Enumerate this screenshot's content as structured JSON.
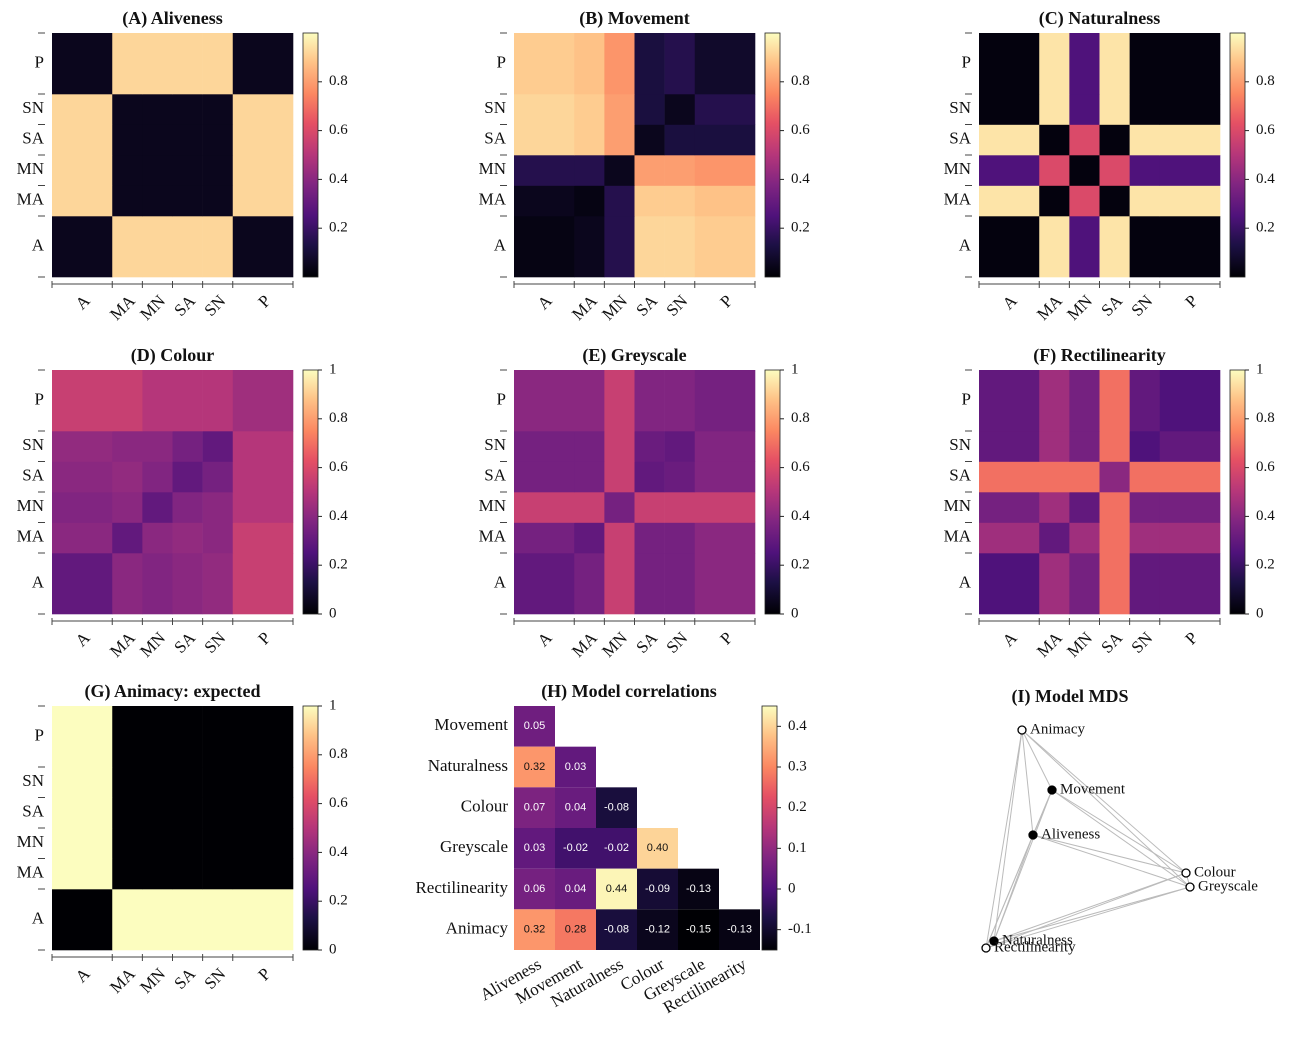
{
  "chart_data": [
    {
      "type": "heatmap",
      "title": "(A) Aliveness",
      "categories": [
        "A",
        "MA",
        "MN",
        "SA",
        "SN",
        "P"
      ],
      "xticks": [
        0,
        12,
        18,
        24,
        30,
        36,
        48
      ],
      "z": [
        [
          0.05,
          0.92,
          0.92,
          0.92,
          0.92,
          0.05
        ],
        [
          0.92,
          0.05,
          0.05,
          0.05,
          0.05,
          0.92
        ],
        [
          0.92,
          0.05,
          0.05,
          0.05,
          0.05,
          0.92
        ],
        [
          0.92,
          0.05,
          0.05,
          0.05,
          0.05,
          0.92
        ],
        [
          0.92,
          0.05,
          0.05,
          0.05,
          0.05,
          0.92
        ],
        [
          0.05,
          0.92,
          0.92,
          0.92,
          0.92,
          0.05
        ]
      ],
      "zlim": [
        0,
        1
      ],
      "zticks": [
        0.2,
        0.4,
        0.6,
        0.8
      ]
    },
    {
      "type": "heatmap",
      "title": "(B) Movement",
      "categories": [
        "A",
        "MA",
        "MN",
        "SA",
        "SN",
        "P"
      ],
      "xticks": [
        0,
        12,
        18,
        24,
        30,
        36,
        48
      ],
      "z": [
        [
          0.03,
          0.05,
          0.15,
          0.92,
          0.92,
          0.9
        ],
        [
          0.05,
          0.03,
          0.15,
          0.9,
          0.9,
          0.88
        ],
        [
          0.15,
          0.15,
          0.05,
          0.8,
          0.8,
          0.78
        ],
        [
          0.92,
          0.9,
          0.8,
          0.05,
          0.12,
          0.12
        ],
        [
          0.92,
          0.9,
          0.8,
          0.12,
          0.05,
          0.15
        ],
        [
          0.9,
          0.88,
          0.78,
          0.12,
          0.15,
          0.08
        ]
      ],
      "zlim": [
        0,
        1
      ],
      "zticks": [
        0.2,
        0.4,
        0.6,
        0.8
      ]
    },
    {
      "type": "heatmap",
      "title": "(C) Naturalness",
      "categories": [
        "A",
        "MA",
        "MN",
        "SA",
        "SN",
        "P"
      ],
      "xticks": [
        0,
        12,
        18,
        24,
        30,
        36,
        48
      ],
      "z": [
        [
          0.02,
          0.95,
          0.25,
          0.95,
          0.02,
          0.02
        ],
        [
          0.95,
          0.02,
          0.6,
          0.02,
          0.95,
          0.95
        ],
        [
          0.25,
          0.6,
          0.02,
          0.6,
          0.25,
          0.25
        ],
        [
          0.95,
          0.02,
          0.6,
          0.02,
          0.95,
          0.95
        ],
        [
          0.02,
          0.95,
          0.25,
          0.95,
          0.02,
          0.02
        ],
        [
          0.02,
          0.95,
          0.25,
          0.95,
          0.02,
          0.02
        ]
      ],
      "zlim": [
        0,
        1
      ],
      "zticks": [
        0.2,
        0.4,
        0.6,
        0.8
      ]
    },
    {
      "type": "heatmap",
      "title": "(D) Colour",
      "categories": [
        "A",
        "MA",
        "MN",
        "SA",
        "SN",
        "P"
      ],
      "xticks": [
        0,
        12,
        18,
        24,
        30,
        36,
        48
      ],
      "z": [
        [
          0.3,
          0.4,
          0.38,
          0.4,
          0.42,
          0.55
        ],
        [
          0.4,
          0.3,
          0.4,
          0.42,
          0.4,
          0.55
        ],
        [
          0.38,
          0.4,
          0.3,
          0.38,
          0.4,
          0.5
        ],
        [
          0.4,
          0.42,
          0.38,
          0.3,
          0.35,
          0.5
        ],
        [
          0.42,
          0.4,
          0.4,
          0.35,
          0.3,
          0.5
        ],
        [
          0.55,
          0.55,
          0.5,
          0.5,
          0.5,
          0.45
        ]
      ],
      "zlim": [
        0,
        1
      ],
      "zticks": [
        0,
        0.2,
        0.4,
        0.6,
        0.8,
        1
      ]
    },
    {
      "type": "heatmap",
      "title": "(E) Greyscale",
      "categories": [
        "A",
        "MA",
        "MN",
        "SA",
        "SN",
        "P"
      ],
      "xticks": [
        0,
        12,
        18,
        24,
        30,
        36,
        48
      ],
      "z": [
        [
          0.3,
          0.35,
          0.55,
          0.35,
          0.35,
          0.4
        ],
        [
          0.35,
          0.3,
          0.55,
          0.35,
          0.35,
          0.4
        ],
        [
          0.55,
          0.55,
          0.35,
          0.55,
          0.55,
          0.55
        ],
        [
          0.35,
          0.35,
          0.55,
          0.3,
          0.32,
          0.38
        ],
        [
          0.35,
          0.35,
          0.55,
          0.32,
          0.3,
          0.38
        ],
        [
          0.4,
          0.4,
          0.55,
          0.38,
          0.38,
          0.35
        ]
      ],
      "zlim": [
        0,
        1
      ],
      "zticks": [
        0,
        0.2,
        0.4,
        0.6,
        0.8,
        1
      ]
    },
    {
      "type": "heatmap",
      "title": "(F) Rectilinearity",
      "categories": [
        "A",
        "MA",
        "MN",
        "SA",
        "SN",
        "P"
      ],
      "xticks": [
        0,
        12,
        18,
        24,
        30,
        36,
        48
      ],
      "z": [
        [
          0.25,
          0.45,
          0.35,
          0.7,
          0.3,
          0.3
        ],
        [
          0.45,
          0.3,
          0.45,
          0.7,
          0.45,
          0.45
        ],
        [
          0.35,
          0.45,
          0.3,
          0.7,
          0.35,
          0.35
        ],
        [
          0.7,
          0.7,
          0.7,
          0.4,
          0.7,
          0.7
        ],
        [
          0.3,
          0.45,
          0.35,
          0.7,
          0.25,
          0.3
        ],
        [
          0.3,
          0.45,
          0.35,
          0.7,
          0.3,
          0.25
        ]
      ],
      "zlim": [
        0,
        1
      ],
      "zticks": [
        0,
        0.2,
        0.4,
        0.6,
        0.8,
        1
      ]
    },
    {
      "type": "heatmap",
      "title": "(G) Animacy: expected",
      "categories": [
        "A",
        "MA",
        "MN",
        "SA",
        "SN",
        "P"
      ],
      "xticks": [
        0,
        12,
        18,
        24,
        30,
        36,
        48
      ],
      "z": [
        [
          0,
          1,
          1,
          1,
          1,
          1
        ],
        [
          1,
          0,
          0,
          0,
          0,
          0
        ],
        [
          1,
          0,
          0,
          0,
          0,
          0
        ],
        [
          1,
          0,
          0,
          0,
          0,
          0
        ],
        [
          1,
          0,
          0,
          0,
          0,
          0
        ],
        [
          1,
          0,
          0,
          0,
          0,
          0
        ]
      ],
      "zlim": [
        0,
        1
      ],
      "zticks": [
        0,
        0.2,
        0.4,
        0.6,
        0.8,
        1
      ]
    },
    {
      "type": "correlation",
      "title": "(H) Model correlations",
      "rows": [
        "Movement",
        "Naturalness",
        "Colour",
        "Greyscale",
        "Rectilinearity",
        "Animacy"
      ],
      "columns": [
        "Aliveness",
        "Movement",
        "Naturalness",
        "Colour",
        "Greyscale",
        "Rectilinearity"
      ],
      "values": [
        [
          0.05,
          null,
          null,
          null,
          null,
          null
        ],
        [
          0.32,
          0.03,
          null,
          null,
          null,
          null
        ],
        [
          0.07,
          0.04,
          -0.08,
          null,
          null,
          null
        ],
        [
          0.03,
          -0.02,
          -0.02,
          0.4,
          null,
          null
        ],
        [
          0.06,
          0.04,
          0.44,
          -0.09,
          -0.13,
          null
        ],
        [
          0.32,
          0.28,
          -0.08,
          -0.12,
          -0.15,
          -0.13
        ]
      ],
      "value_labels": [
        [
          "0.05",
          null,
          null,
          null,
          null,
          null
        ],
        [
          "0.32",
          "0.03",
          null,
          null,
          null,
          null
        ],
        [
          "0.07",
          "0.04",
          "-0.08",
          null,
          null,
          null
        ],
        [
          "0.03",
          "-0.02",
          "-0.02",
          "0.40",
          null,
          null
        ],
        [
          "0.06",
          "0.04",
          "0.44",
          "-0.09",
          "-0.13",
          null
        ],
        [
          "0.32",
          "0.28",
          "-0.08",
          "-0.12",
          "-0.15",
          "-0.13"
        ]
      ],
      "zlim": [
        -0.15,
        0.45
      ],
      "zticks": [
        -0.1,
        0,
        0.1,
        0.2,
        0.3,
        0.4
      ]
    },
    {
      "type": "scatter",
      "title": "(I) Model MDS",
      "names": [
        "Animacy",
        "Movement",
        "Aliveness",
        "Colour",
        "Greyscale",
        "Naturalness",
        "Rectilinearity"
      ],
      "x": [
        62,
        92,
        73,
        226,
        230,
        34,
        26
      ],
      "y": [
        230,
        170,
        125,
        87,
        73,
        19,
        12
      ],
      "filled": [
        false,
        true,
        true,
        false,
        false,
        true,
        false
      ],
      "xlim": [
        0,
        300
      ],
      "ylim": [
        0,
        260
      ],
      "connect": true
    }
  ]
}
